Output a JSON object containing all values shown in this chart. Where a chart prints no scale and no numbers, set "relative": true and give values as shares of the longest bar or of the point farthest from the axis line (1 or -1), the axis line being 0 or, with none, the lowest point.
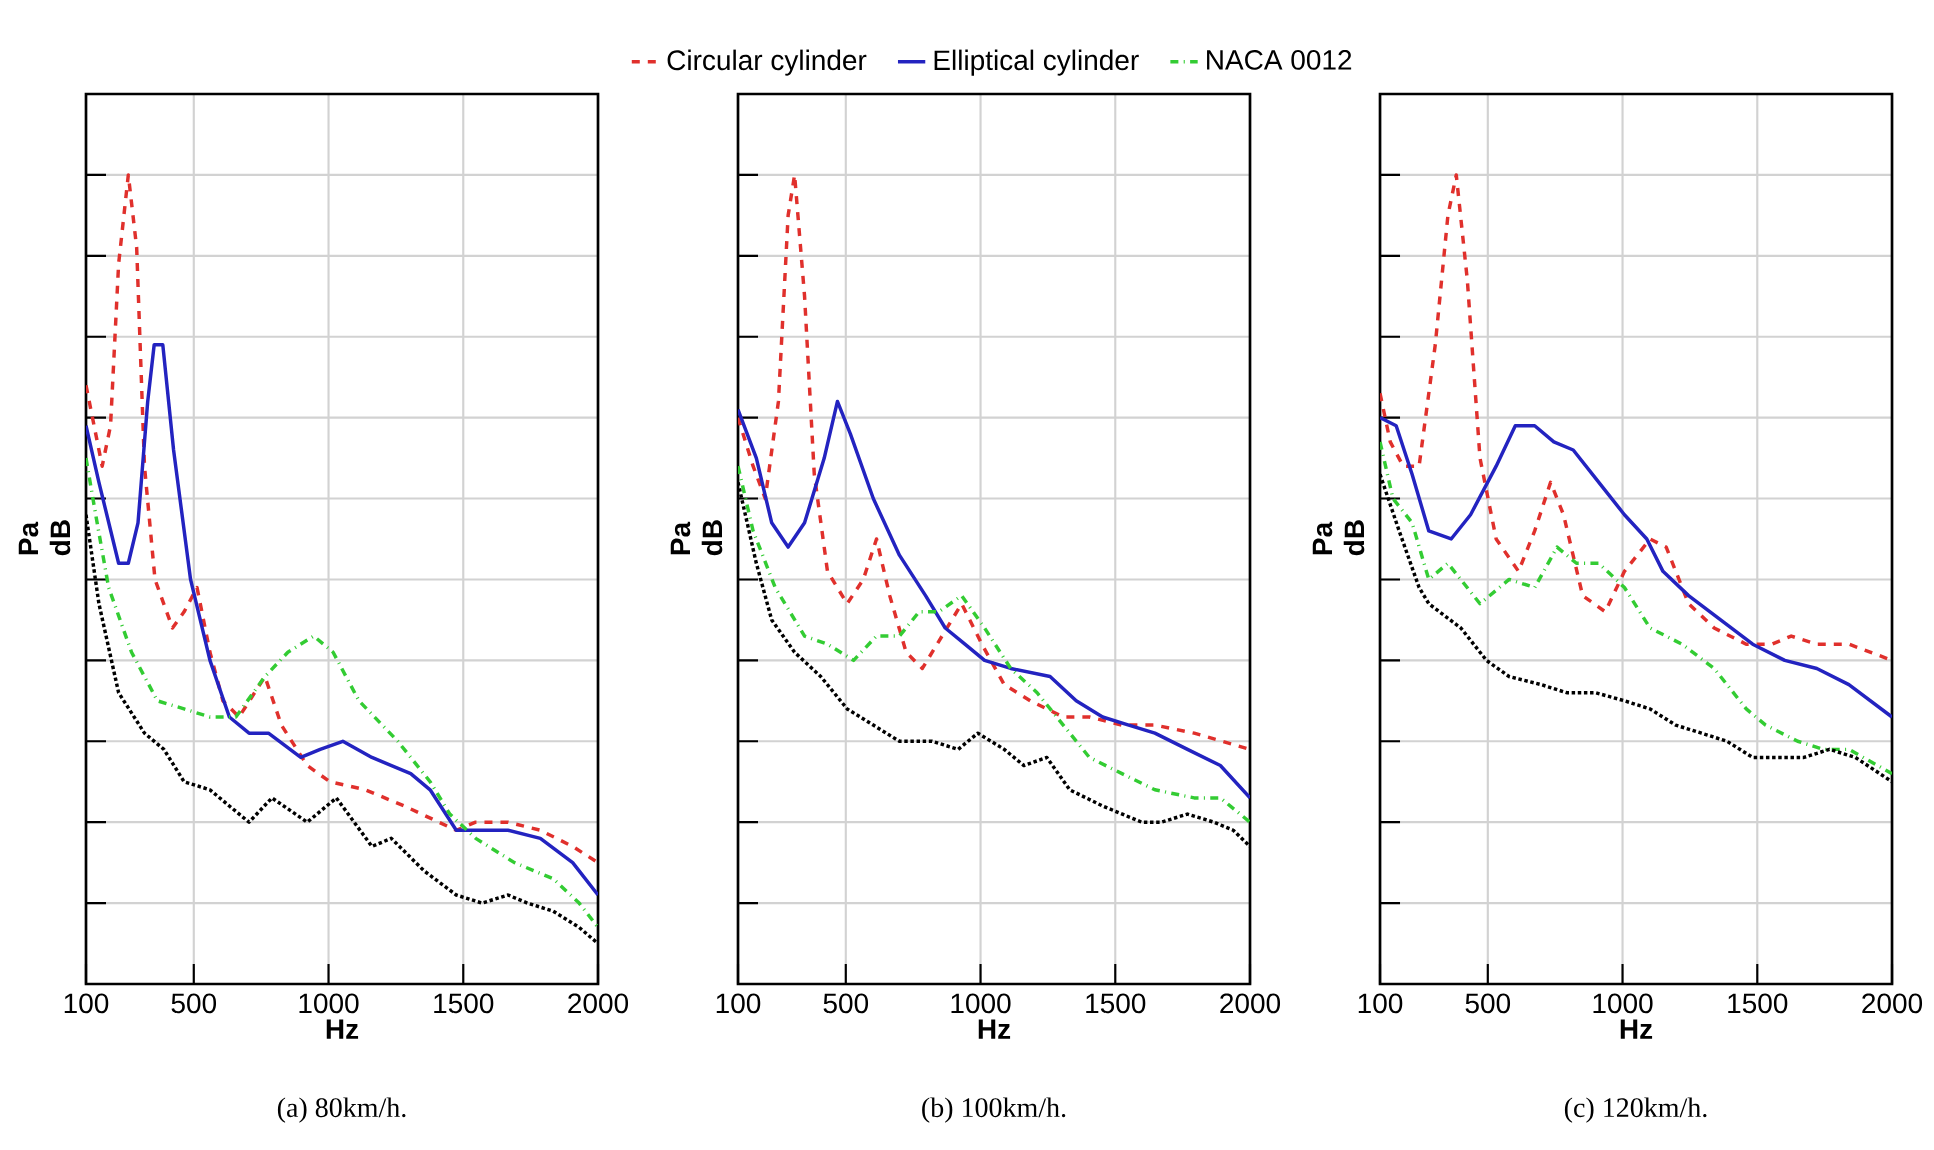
{
  "chart_data": [
    {
      "type": "line",
      "title": "(a) 80km/h.",
      "xlabel": "Hz",
      "ylabel": "Pa dB",
      "relative": true,
      "xlim": [
        100,
        2000
      ],
      "xticks": [
        100,
        500,
        1000,
        1500,
        2000
      ],
      "grid": true,
      "series": [
        {
          "color": "#e0302c",
          "line_style": "dashed",
          "x": [
            100,
            160,
            191,
            221,
            257,
            288,
            317,
            356,
            421,
            464,
            512,
            560,
            608,
            668,
            764,
            825,
            921,
            1005,
            1137,
            1281,
            1474,
            1546,
            1666,
            1786,
            1906,
            2000
          ],
          "values": [
            0.74,
            0.64,
            0.69,
            0.89,
            1,
            0.91,
            0.64,
            0.5,
            0.44,
            0.46,
            0.49,
            0.41,
            0.35,
            0.33,
            0.38,
            0.32,
            0.27,
            0.25,
            0.24,
            0.22,
            0.19,
            0.2,
            0.2,
            0.19,
            0.17,
            0.15
          ]
        },
        {
          "color": "#2323c0",
          "line_style": "solid",
          "x": [
            100,
            148,
            221,
            257,
            293,
            329,
            353,
            385,
            425,
            488,
            560,
            632,
            705,
            777,
            897,
            969,
            1053,
            1161,
            1305,
            1377,
            1474,
            1546,
            1666,
            1786,
            1906,
            2000
          ],
          "values": [
            0.69,
            0.62,
            0.52,
            0.52,
            0.57,
            0.72,
            0.79,
            0.79,
            0.66,
            0.5,
            0.4,
            0.33,
            0.31,
            0.31,
            0.28,
            0.29,
            0.3,
            0.28,
            0.26,
            0.24,
            0.19,
            0.19,
            0.19,
            0.18,
            0.15,
            0.11
          ]
        },
        {
          "color": "#33cc33",
          "line_style": "dashdot",
          "x": [
            100,
            136,
            184,
            269,
            365,
            464,
            560,
            656,
            764,
            849,
            945,
            1017,
            1113,
            1257,
            1377,
            1450,
            1546,
            1690,
            1834,
            1930,
            2000
          ],
          "values": [
            0.65,
            0.58,
            0.49,
            0.41,
            0.35,
            0.34,
            0.33,
            0.33,
            0.38,
            0.41,
            0.43,
            0.41,
            0.35,
            0.3,
            0.25,
            0.21,
            0.18,
            0.15,
            0.13,
            0.1,
            0.07
          ]
        },
        {
          "color": "#000000",
          "line_style": "dotted",
          "x": [
            100,
            148,
            221,
            317,
            389,
            464,
            560,
            632,
            705,
            790,
            921,
            1029,
            1161,
            1233,
            1354,
            1474,
            1570,
            1666,
            1738,
            1834,
            1930,
            2000
          ],
          "values": [
            0.58,
            0.47,
            0.36,
            0.31,
            0.29,
            0.25,
            0.24,
            0.22,
            0.2,
            0.23,
            0.2,
            0.23,
            0.17,
            0.18,
            0.14,
            0.11,
            0.1,
            0.11,
            0.1,
            0.09,
            0.07,
            0.05
          ]
        }
      ]
    },
    {
      "type": "line",
      "title": "(b) 100km/h.",
      "xlabel": "Hz",
      "ylabel": "Pa dB",
      "relative": true,
      "xlim": [
        100,
        2000
      ],
      "xticks": [
        100,
        500,
        1000,
        1500,
        2000
      ],
      "grid": true,
      "legend": "top",
      "series": [
        {
          "name": "Circular cylinder",
          "color": "#e0302c",
          "line_style": "dashed",
          "x": [
            100,
            156,
            201,
            250,
            286,
            310,
            347,
            383,
            432,
            505,
            565,
            614,
            663,
            724,
            784,
            857,
            930,
            1005,
            1088,
            1185,
            1307,
            1404,
            1525,
            1647,
            1793,
            2000
          ],
          "values": [
            0.7,
            0.64,
            0.6,
            0.72,
            0.95,
            1,
            0.85,
            0.63,
            0.51,
            0.47,
            0.5,
            0.55,
            0.48,
            0.41,
            0.39,
            0.43,
            0.47,
            0.42,
            0.37,
            0.35,
            0.33,
            0.33,
            0.32,
            0.32,
            0.31,
            0.29
          ]
        },
        {
          "name": "Elliptical cylinder",
          "color": "#2323c0",
          "line_style": "solid",
          "x": [
            100,
            168,
            225,
            286,
            347,
            420,
            469,
            517,
            602,
            699,
            796,
            869,
            942,
            1015,
            1112,
            1258,
            1355,
            1453,
            1550,
            1647,
            1768,
            1890,
            2000
          ],
          "values": [
            0.71,
            0.65,
            0.57,
            0.54,
            0.57,
            0.65,
            0.72,
            0.68,
            0.6,
            0.53,
            0.48,
            0.44,
            0.42,
            0.4,
            0.39,
            0.38,
            0.35,
            0.33,
            0.32,
            0.31,
            0.29,
            0.27,
            0.23
          ]
        },
        {
          "name": "NACA 0012",
          "color": "#33cc33",
          "line_style": "dashdot",
          "x": [
            100,
            156,
            238,
            347,
            432,
            529,
            614,
            699,
            772,
            845,
            930,
            1015,
            1112,
            1210,
            1307,
            1404,
            1525,
            1647,
            1793,
            1890,
            2000
          ],
          "values": [
            0.64,
            0.56,
            0.49,
            0.43,
            0.42,
            0.4,
            0.43,
            0.43,
            0.46,
            0.46,
            0.48,
            0.44,
            0.39,
            0.36,
            0.32,
            0.28,
            0.26,
            0.24,
            0.23,
            0.23,
            0.2
          ]
        },
        {
          "color": "#000000",
          "line_style": "dotted",
          "x": [
            100,
            168,
            225,
            310,
            407,
            505,
            602,
            699,
            820,
            917,
            990,
            1088,
            1161,
            1246,
            1331,
            1453,
            1598,
            1671,
            1768,
            1866,
            1938,
            2000
          ],
          "values": [
            0.62,
            0.52,
            0.45,
            0.41,
            0.38,
            0.34,
            0.32,
            0.3,
            0.3,
            0.29,
            0.31,
            0.29,
            0.27,
            0.28,
            0.24,
            0.22,
            0.2,
            0.2,
            0.21,
            0.2,
            0.19,
            0.17
          ]
        }
      ]
    },
    {
      "type": "line",
      "title": "(c) 120km/h.",
      "xlabel": "Hz",
      "ylabel": "Pa dB",
      "relative": true,
      "xlim": [
        100,
        2000
      ],
      "xticks": [
        100,
        500,
        1000,
        1500,
        2000
      ],
      "grid": true,
      "series": [
        {
          "color": "#e0302c",
          "line_style": "dashed",
          "x": [
            100,
            138,
            186,
            245,
            305,
            352,
            383,
            424,
            471,
            531,
            614,
            674,
            733,
            781,
            852,
            936,
            1007,
            1102,
            1162,
            1245,
            1340,
            1459,
            1555,
            1626,
            1721,
            1840,
            2000
          ],
          "values": [
            0.73,
            0.67,
            0.64,
            0.64,
            0.79,
            0.95,
            1,
            0.87,
            0.65,
            0.55,
            0.51,
            0.56,
            0.62,
            0.58,
            0.48,
            0.46,
            0.51,
            0.55,
            0.54,
            0.47,
            0.44,
            0.42,
            0.42,
            0.43,
            0.42,
            0.42,
            0.4
          ]
        },
        {
          "color": "#2323c0",
          "line_style": "solid",
          "x": [
            100,
            160,
            219,
            281,
            364,
            436,
            531,
            602,
            674,
            745,
            817,
            912,
            1007,
            1090,
            1150,
            1245,
            1364,
            1483,
            1602,
            1721,
            1840,
            2000
          ],
          "values": [
            0.7,
            0.69,
            0.63,
            0.56,
            0.55,
            0.58,
            0.64,
            0.69,
            0.69,
            0.67,
            0.66,
            0.62,
            0.58,
            0.55,
            0.51,
            0.48,
            0.45,
            0.42,
            0.4,
            0.39,
            0.37,
            0.33
          ]
        },
        {
          "color": "#33cc33",
          "line_style": "dashdot",
          "x": [
            100,
            148,
            219,
            281,
            352,
            471,
            579,
            674,
            757,
            829,
            912,
            1007,
            1102,
            1221,
            1340,
            1459,
            1531,
            1650,
            1745,
            1840,
            2000
          ],
          "values": [
            0.67,
            0.6,
            0.57,
            0.5,
            0.52,
            0.47,
            0.5,
            0.49,
            0.54,
            0.52,
            0.52,
            0.49,
            0.44,
            0.42,
            0.39,
            0.34,
            0.32,
            0.3,
            0.29,
            0.29,
            0.26
          ]
        },
        {
          "color": "#000000",
          "line_style": "dotted",
          "x": [
            100,
            171,
            245,
            281,
            400,
            495,
            579,
            698,
            793,
            900,
            1007,
            1102,
            1197,
            1293,
            1388,
            1483,
            1602,
            1673,
            1768,
            1864,
            2000
          ],
          "values": [
            0.63,
            0.56,
            0.49,
            0.47,
            0.44,
            0.4,
            0.38,
            0.37,
            0.36,
            0.36,
            0.35,
            0.34,
            0.32,
            0.31,
            0.3,
            0.28,
            0.28,
            0.28,
            0.29,
            0.28,
            0.25
          ]
        }
      ]
    }
  ]
}
